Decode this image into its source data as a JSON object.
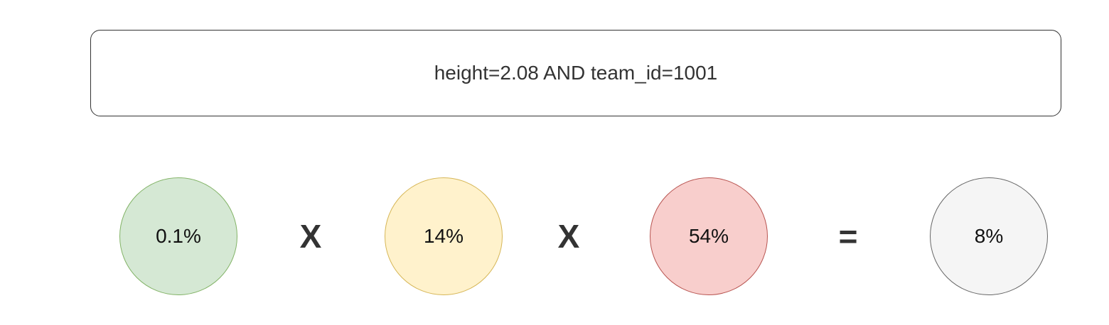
{
  "query": {
    "text": "height=2.08 AND team_id=1001"
  },
  "circles": [
    {
      "label": "0.1%",
      "fill": "#d5e8d4",
      "stroke": "#82b366"
    },
    {
      "label": "14%",
      "fill": "#fff2cc",
      "stroke": "#d6b656"
    },
    {
      "label": "54%",
      "fill": "#f8cecc",
      "stroke": "#b85450"
    },
    {
      "label": "8%",
      "fill": "#f5f5f5",
      "stroke": "#666666"
    }
  ],
  "operators": [
    "X",
    "X",
    "="
  ]
}
